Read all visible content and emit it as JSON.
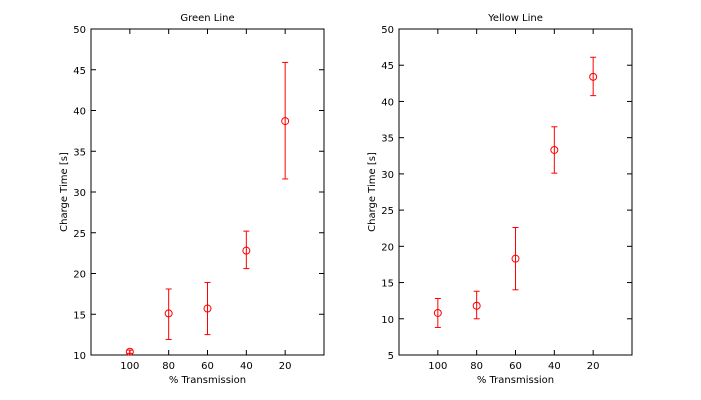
{
  "chart_data": [
    {
      "type": "scatter",
      "title": "Green Line",
      "xlabel": "% Transmission",
      "ylabel": "Charge Time [s]",
      "xlim": [
        120,
        0
      ],
      "ylim": [
        10,
        50
      ],
      "xticks": [
        100,
        80,
        60,
        40,
        20
      ],
      "yticks": [
        10,
        15,
        20,
        25,
        30,
        35,
        40,
        45,
        50
      ],
      "x": [
        100,
        80,
        60,
        40,
        20
      ],
      "y": [
        10.4,
        15.1,
        15.7,
        22.8,
        38.7
      ],
      "err_low": [
        0.2,
        3.2,
        3.2,
        2.2,
        7.1
      ],
      "err_high": [
        0.2,
        3.0,
        3.2,
        2.4,
        7.2
      ],
      "marker": "open-circle",
      "color": "#ff0000",
      "grid": false
    },
    {
      "type": "scatter",
      "title": "Yellow Line",
      "xlabel": "% Transmission",
      "ylabel": "Charge Time [s]",
      "xlim": [
        120,
        0
      ],
      "ylim": [
        5,
        50
      ],
      "xticks": [
        100,
        80,
        60,
        40,
        20
      ],
      "yticks": [
        5,
        10,
        15,
        20,
        25,
        30,
        35,
        40,
        45,
        50
      ],
      "x": [
        100,
        80,
        60,
        40,
        20
      ],
      "y": [
        10.8,
        11.8,
        18.3,
        33.3,
        43.4
      ],
      "err_low": [
        2.0,
        1.8,
        4.3,
        3.2,
        2.6
      ],
      "err_high": [
        2.0,
        2.0,
        4.3,
        3.2,
        2.7
      ],
      "marker": "open-circle",
      "color": "#ff0000",
      "grid": false
    }
  ]
}
